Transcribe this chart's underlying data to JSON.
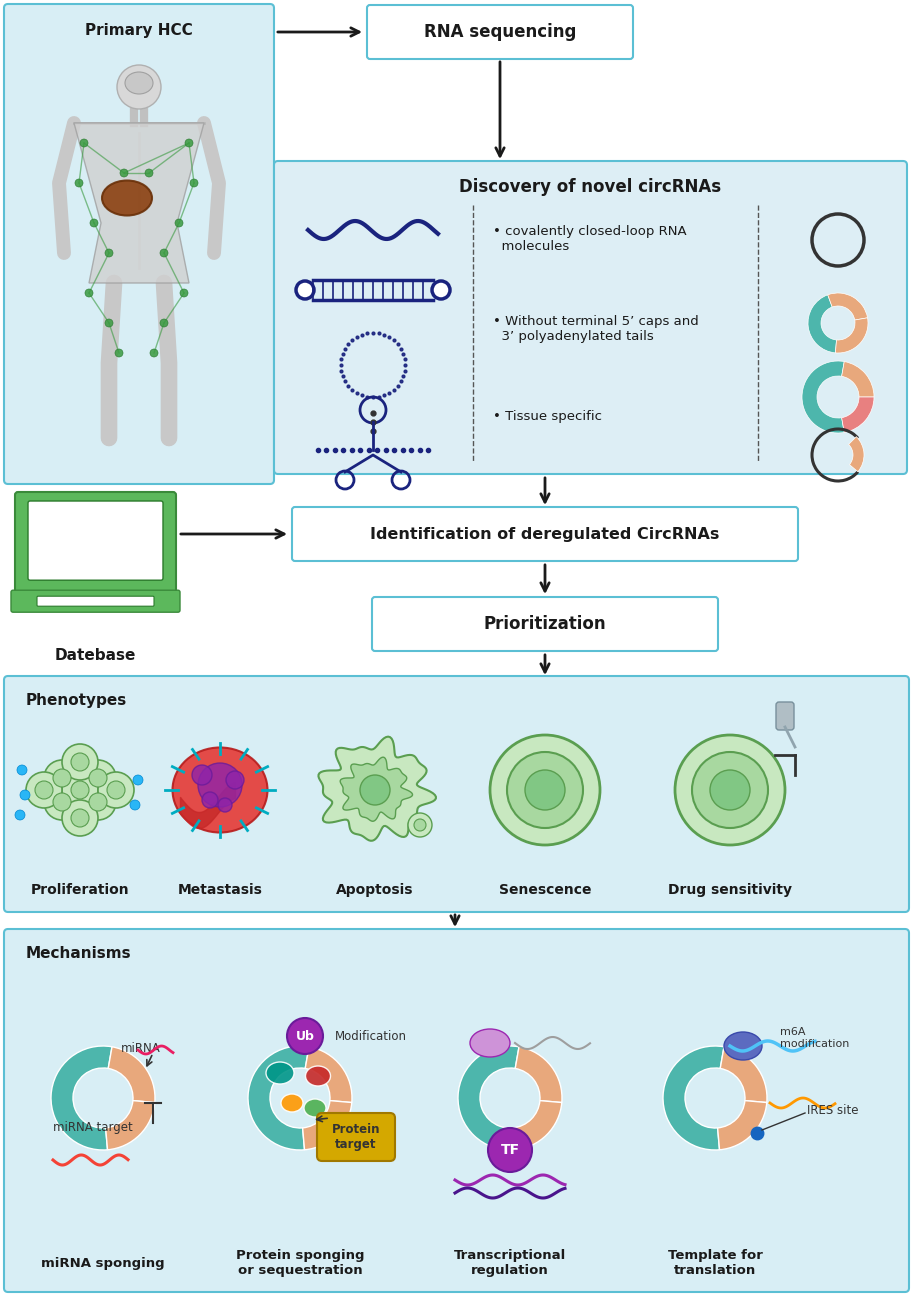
{
  "bg_color": "#ffffff",
  "box_border_color": "#5bbfd4",
  "hcc_bg": "#d8eef5",
  "discovery_bg": "#ddeef5",
  "pheno_bg": "#d8eef5",
  "mech_bg": "#d8eef5",
  "arrow_color": "#1a1a1a",
  "title_color": "#1a1a1a",
  "text_color": "#1a1a1a",
  "dark_blue": "#1a237e",
  "teal": "#4db6ac",
  "orange_c": "#e8a87c",
  "pink_c": "#e88080",
  "green_cell": "#a8d8a0",
  "green_cell_inner": "#c8e8c0",
  "green_cell_border": "#5a9e50",
  "section1_title": "Primary HCC",
  "section2_title": "RNA sequencing",
  "section3_title": "Discovery of novel circRNAs",
  "section4_title": "Identification of deregulated CircRNAs",
  "section5_title": "Prioritization",
  "section6_title": "Phenotypes",
  "section7_title": "Mechanisms",
  "bullet1": "• covalently closed-loop RNA\n  molecules",
  "bullet2": "• Without terminal 5’ caps and\n  3’ polyadenylated tails",
  "bullet3": "• Tissue specific",
  "phenotypes": [
    "Proliferation",
    "Metastasis",
    "Apoptosis",
    "Senescence",
    "Drug sensitivity"
  ],
  "mechanisms": [
    "miRNA sponging",
    "Protein sponging\nor sequestration",
    "Transcriptional\nregulation",
    "Template for\ntranslation"
  ],
  "mirna_label": "miRNA",
  "mirna_target": "miRNA target",
  "ub_label": "Ub",
  "modification_label": "Modification",
  "protein_target": "Protein\ntarget",
  "tf_label": "TF",
  "m6a_label": "m6A\nmodification",
  "ires_label": "IRES site",
  "datebase_label": "Datebase"
}
